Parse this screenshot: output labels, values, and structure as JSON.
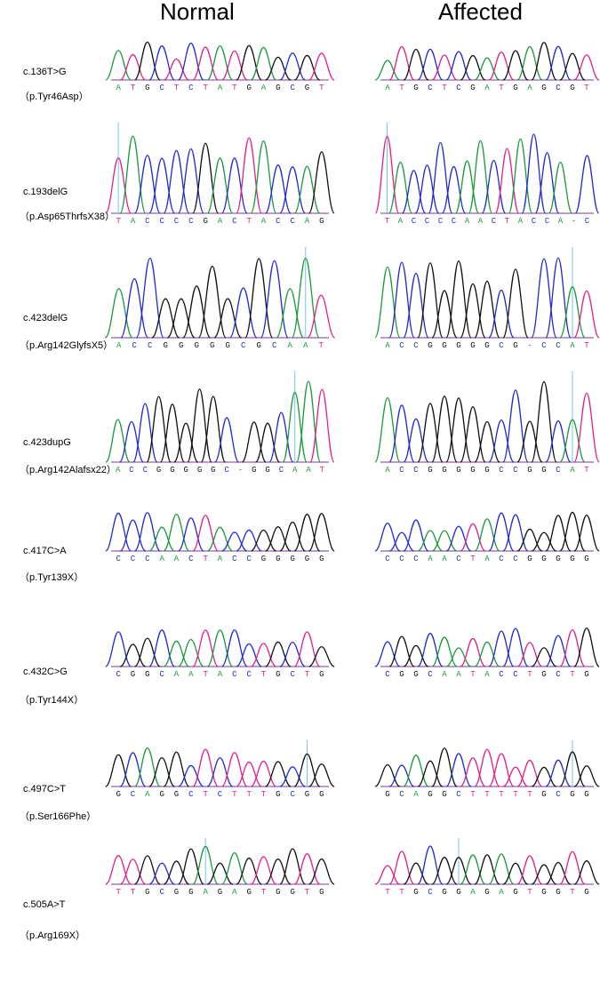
{
  "columns": {
    "normal": "Normal",
    "affected": "Affected"
  },
  "colors": {
    "A": "#1a9a3a",
    "C": "#1f2bd0",
    "G": "#111111",
    "T": "#e0208a",
    "-": "#555555",
    "marker": "#6fc7e8"
  },
  "rows": [
    {
      "mutation": "c.136T>G",
      "protein": "（p.Tyr46Asp）",
      "normal": {
        "seq": "ATGCTCTATGAGCGT",
        "marker": null
      },
      "affected": {
        "seq": "ATGCTCGATGAGCGT",
        "marker": null
      }
    },
    {
      "mutation": "c.193delG",
      "protein": "（p.Asp65ThrfsX38）",
      "normal": {
        "seq": "TACCCCGACTACCAG",
        "marker": 0
      },
      "affected": {
        "seq": "TACCCCAACTACCA-C",
        "marker": 0
      }
    },
    {
      "mutation": "c.423delG",
      "protein": "（p.Arg142GlyfsX5）",
      "normal": {
        "seq": "ACCGGGGGCGCAAT",
        "marker": 12
      },
      "affected": {
        "seq": "ACCGGGGGCG-CCAT",
        "marker": 13
      }
    },
    {
      "mutation": "c.423dupG",
      "protein": "（p.Arg142Alafsx22）",
      "normal": {
        "seq": "ACCGGGGGC-GGCAAT",
        "marker": 13
      },
      "affected": {
        "seq": "ACCGGGGGCCGGCAT",
        "marker": 13
      }
    },
    {
      "mutation": "c.417C>A",
      "protein": "（p.Tyr139X）",
      "normal": {
        "seq": "CCCAACTACCGGGGG",
        "marker": null
      },
      "affected": {
        "seq": "CCCAACTACCGGGGG",
        "marker": null
      }
    },
    {
      "mutation": "c.432C>G",
      "protein": "（p.Tyr144X）",
      "normal": {
        "seq": "CGGCAATACCTGCTG",
        "marker": null
      },
      "affected": {
        "seq": "CGGCAATACCTGCTG",
        "marker": null
      }
    },
    {
      "mutation": "c.497C>T",
      "protein": "（p.Ser166Phe）",
      "normal": {
        "seq": "GCAGGCTCTTTGCGG",
        "marker": 13
      },
      "affected": {
        "seq": "GCAGGCTTTTTGCGG",
        "marker": 13
      }
    },
    {
      "mutation": "c.505A>T",
      "protein": "（p.Arg169X）",
      "normal": {
        "seq": "TTGCGGAGAGTGGTG",
        "marker": 6
      },
      "affected": {
        "seq": "TTGCGGAGAGTGGTG",
        "marker": 5
      }
    }
  ]
}
